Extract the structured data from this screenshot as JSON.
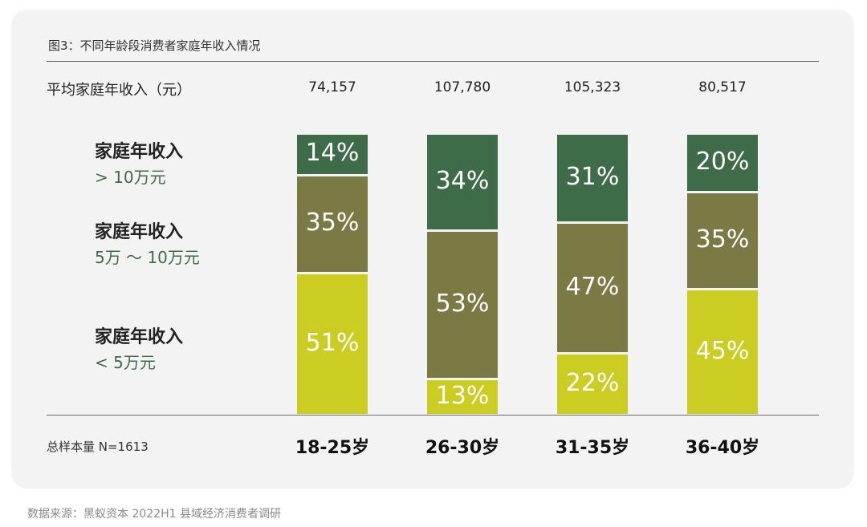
{
  "figure_title": "图3：不同年龄段消费者家庭年收入情况",
  "avg_income": {
    "label": "平均家庭年收入（元）",
    "values": [
      "74,157",
      "107,780",
      "105,323",
      "80,517"
    ]
  },
  "legend": [
    {
      "title": "家庭年收入",
      "range": "> 10万元"
    },
    {
      "title": "家庭年收入",
      "range": "5万 ～ 10万元"
    },
    {
      "title": "家庭年收入",
      "range": "< 5万元"
    }
  ],
  "sample_size": "总样本量 N=1613",
  "source": "数据来源：黑蚁资本 2022H1 县域经济消费者调研",
  "colors": {
    "high": "#3e6b48",
    "mid": "#7b7a44",
    "low": "#cccd22",
    "legend_text": "#3e6b48"
  },
  "chart_data": {
    "type": "bar",
    "stacked": true,
    "orientation": "vertical",
    "categories": [
      "18-25岁",
      "26-30岁",
      "31-35岁",
      "36-40岁"
    ],
    "ylim": [
      0,
      100
    ],
    "series": [
      {
        "name": "家庭年收入 < 5万元",
        "values": [
          51,
          13,
          22,
          45
        ],
        "labels": [
          "51%",
          "13%",
          "22%",
          "45%"
        ]
      },
      {
        "name": "家庭年收入 5万 ～ 10万元",
        "values": [
          35,
          53,
          47,
          35
        ],
        "labels": [
          "35%",
          "53%",
          "47%",
          "35%"
        ]
      },
      {
        "name": "家庭年收入 > 10万元",
        "values": [
          14,
          34,
          31,
          20
        ],
        "labels": [
          "14%",
          "34%",
          "31%",
          "20%"
        ]
      }
    ],
    "grid": false,
    "legend_position": "left"
  }
}
